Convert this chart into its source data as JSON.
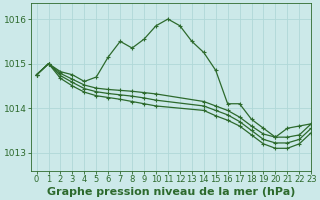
{
  "title": "Graphe pression niveau de la mer (hPa)",
  "background_color": "#cce9e9",
  "grid_color": "#b0d8d8",
  "line_color": "#2d6a2d",
  "marker_color": "#2d6a2d",
  "xlim": [
    -0.5,
    23
  ],
  "ylim": [
    1012.6,
    1016.35
  ],
  "yticks": [
    1013,
    1014,
    1015,
    1016
  ],
  "xticks": [
    0,
    1,
    2,
    3,
    4,
    5,
    6,
    7,
    8,
    9,
    10,
    11,
    12,
    13,
    14,
    15,
    16,
    17,
    18,
    19,
    20,
    21,
    22,
    23
  ],
  "series": [
    {
      "x": [
        0,
        1,
        2,
        3,
        4,
        5,
        6,
        7,
        8,
        9,
        10,
        11,
        12,
        13,
        14,
        15,
        16,
        17,
        18,
        19,
        20,
        21,
        22,
        23
      ],
      "y": [
        1014.75,
        1015.0,
        1014.82,
        1014.75,
        1014.6,
        1014.7,
        1015.15,
        1015.5,
        1015.35,
        1015.55,
        1015.85,
        1016.0,
        1015.85,
        1015.5,
        1015.25,
        1014.85,
        1014.1,
        1014.1,
        1013.75,
        1013.55,
        1013.35,
        1013.55,
        1013.6,
        1013.65
      ],
      "has_markers": true
    },
    {
      "x": [
        0,
        1,
        2,
        3,
        4,
        5,
        6,
        7,
        8,
        9,
        10,
        14,
        15,
        16,
        17,
        18,
        19,
        20,
        21,
        22,
        23
      ],
      "y": [
        1014.75,
        1015.0,
        1014.78,
        1014.65,
        1014.52,
        1014.45,
        1014.42,
        1014.4,
        1014.38,
        1014.35,
        1014.32,
        1014.15,
        1014.05,
        1013.95,
        1013.8,
        1013.6,
        1013.42,
        1013.35,
        1013.35,
        1013.4,
        1013.65
      ],
      "has_markers": true
    },
    {
      "x": [
        0,
        1,
        2,
        3,
        4,
        5,
        6,
        7,
        8,
        9,
        10,
        14,
        15,
        16,
        17,
        18,
        19,
        20,
        21,
        22,
        23
      ],
      "y": [
        1014.75,
        1015.0,
        1014.73,
        1014.58,
        1014.44,
        1014.37,
        1014.33,
        1014.3,
        1014.27,
        1014.23,
        1014.18,
        1014.05,
        1013.95,
        1013.85,
        1013.7,
        1013.5,
        1013.3,
        1013.22,
        1013.22,
        1013.3,
        1013.55
      ],
      "has_markers": true
    },
    {
      "x": [
        0,
        1,
        2,
        3,
        4,
        5,
        6,
        7,
        8,
        9,
        10,
        14,
        15,
        16,
        17,
        18,
        19,
        20,
        21,
        22,
        23
      ],
      "y": [
        1014.75,
        1015.0,
        1014.67,
        1014.5,
        1014.36,
        1014.28,
        1014.24,
        1014.2,
        1014.15,
        1014.1,
        1014.05,
        1013.95,
        1013.83,
        1013.73,
        1013.6,
        1013.4,
        1013.2,
        1013.1,
        1013.1,
        1013.2,
        1013.45
      ],
      "has_markers": true
    }
  ],
  "title_fontsize": 8,
  "tick_fontsize": 6.5
}
